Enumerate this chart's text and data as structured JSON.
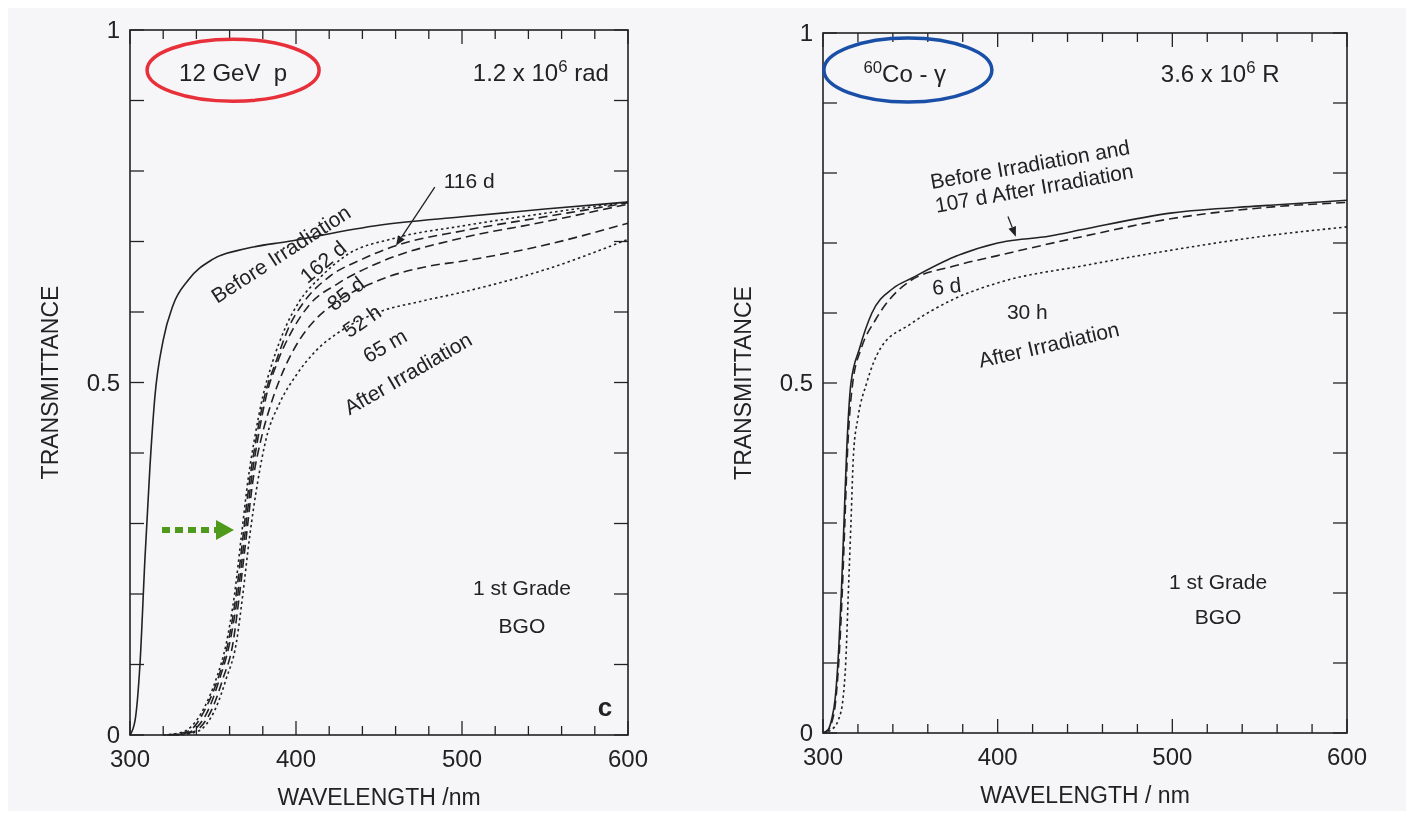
{
  "chart_data": [
    {
      "type": "line",
      "xlabel": "WAVELENGTH /nm",
      "ylabel": "TRANSMITTANCE",
      "xlim": [
        300,
        600
      ],
      "ylim": [
        0,
        1
      ],
      "xticks": [
        300,
        {
          "value": 320,
          "label": null
        },
        {
          "value": 340,
          "label": null
        },
        {
          "value": 360,
          "label": null
        },
        {
          "value": 380,
          "label": null
        },
        400,
        {
          "value": 420,
          "label": null
        },
        {
          "value": 440,
          "label": null
        },
        {
          "value": 460,
          "label": null
        },
        {
          "value": 480,
          "label": null
        },
        500,
        {
          "value": 520,
          "label": null
        },
        {
          "value": 540,
          "label": null
        },
        {
          "value": 560,
          "label": null
        },
        {
          "value": 580,
          "label": null
        },
        600
      ],
      "yticks": [
        0,
        {
          "value": 0.1,
          "label": null
        },
        {
          "value": 0.2,
          "label": null
        },
        {
          "value": 0.3,
          "label": null
        },
        {
          "value": 0.4,
          "label": null
        },
        0.5,
        {
          "value": 0.6,
          "label": null
        },
        {
          "value": 0.7,
          "label": null
        },
        {
          "value": 0.8,
          "label": null
        },
        {
          "value": 0.9,
          "label": null
        },
        1
      ],
      "annotations": [
        "12 GeV  p",
        "1.2 x 10$^{6}$ rad",
        "After Irradiation",
        "1 st Grade",
        "BGO",
        "c"
      ],
      "series": [
        {
          "name": "Before Irradiation",
          "color": "#222222",
          "line_style": "solid",
          "x": [
            300,
            303,
            306,
            309,
            312,
            315,
            320,
            326,
            335,
            350,
            370,
            395,
            450,
            500,
            550,
            600
          ],
          "values": [
            0,
            0.02,
            0.1,
            0.25,
            0.38,
            0.48,
            0.56,
            0.61,
            0.645,
            0.675,
            0.69,
            0.7,
            0.723,
            0.735,
            0.746,
            0.756
          ]
        },
        {
          "name": "162 d",
          "color": "#222222",
          "line_style": "dotted",
          "x": [
            320,
            330,
            336,
            345,
            352,
            358,
            363,
            367,
            371,
            375,
            380,
            386,
            394,
            402,
            415,
            430,
            460,
            500,
            550,
            600
          ],
          "values": [
            0,
            0.003,
            0.01,
            0.04,
            0.08,
            0.13,
            0.2,
            0.28,
            0.36,
            0.42,
            0.48,
            0.53,
            0.58,
            0.615,
            0.65,
            0.68,
            0.705,
            0.722,
            0.74,
            0.756
          ]
        },
        {
          "name": "116 d",
          "color": "#222222",
          "line_style": "dashed",
          "x": [
            322,
            332,
            338,
            346,
            353,
            359,
            364,
            368,
            372,
            376,
            381,
            388,
            396,
            405,
            420,
            440,
            460,
            500,
            550,
            600
          ],
          "values": [
            0,
            0.003,
            0.01,
            0.04,
            0.08,
            0.13,
            0.2,
            0.28,
            0.36,
            0.42,
            0.48,
            0.53,
            0.58,
            0.615,
            0.65,
            0.675,
            0.694,
            0.715,
            0.735,
            0.755
          ]
        },
        {
          "name": "85 d",
          "color": "#222222",
          "line_style": "dashed",
          "x": [
            324,
            334,
            340,
            348,
            354,
            360,
            365,
            369,
            373,
            377,
            382,
            389,
            398,
            408,
            425,
            450,
            500,
            550,
            600
          ],
          "values": [
            0,
            0.003,
            0.01,
            0.04,
            0.08,
            0.13,
            0.2,
            0.28,
            0.36,
            0.42,
            0.48,
            0.53,
            0.575,
            0.61,
            0.64,
            0.67,
            0.705,
            0.728,
            0.753
          ]
        },
        {
          "name": "52 h",
          "color": "#222222",
          "line_style": "dashed",
          "x": [
            326,
            336,
            342,
            350,
            356,
            362,
            366,
            370,
            374,
            379,
            385,
            393,
            402,
            412,
            425,
            450,
            480,
            500,
            550,
            600
          ],
          "values": [
            0,
            0.003,
            0.01,
            0.04,
            0.08,
            0.13,
            0.2,
            0.28,
            0.36,
            0.42,
            0.47,
            0.52,
            0.56,
            0.59,
            0.615,
            0.645,
            0.665,
            0.672,
            0.695,
            0.726
          ]
        },
        {
          "name": "65 m",
          "color": "#222222",
          "line_style": "dotted",
          "x": [
            328,
            338,
            344,
            352,
            358,
            364,
            368,
            372,
            377,
            382,
            390,
            400,
            412,
            425,
            450,
            475,
            500,
            550,
            600
          ],
          "values": [
            0,
            0.003,
            0.01,
            0.04,
            0.08,
            0.13,
            0.2,
            0.28,
            0.36,
            0.42,
            0.47,
            0.51,
            0.545,
            0.57,
            0.6,
            0.615,
            0.628,
            0.66,
            0.703
          ]
        }
      ]
    },
    {
      "type": "line",
      "xlabel": "WAVELENGTH / nm",
      "ylabel": "TRANSMITTANCE",
      "xlim": [
        300,
        600
      ],
      "ylim": [
        0,
        1
      ],
      "xticks": [
        300,
        {
          "value": 320,
          "label": null
        },
        {
          "value": 340,
          "label": null
        },
        {
          "value": 360,
          "label": null
        },
        {
          "value": 380,
          "label": null
        },
        400,
        {
          "value": 420,
          "label": null
        },
        {
          "value": 440,
          "label": null
        },
        {
          "value": 460,
          "label": null
        },
        {
          "value": 480,
          "label": null
        },
        500,
        {
          "value": 520,
          "label": null
        },
        {
          "value": 540,
          "label": null
        },
        {
          "value": 560,
          "label": null
        },
        {
          "value": 580,
          "label": null
        },
        600
      ],
      "yticks": [
        0,
        {
          "value": 0.1,
          "label": null
        },
        {
          "value": 0.2,
          "label": null
        },
        {
          "value": 0.3,
          "label": null
        },
        {
          "value": 0.4,
          "label": null
        },
        0.5,
        {
          "value": 0.6,
          "label": null
        },
        {
          "value": 0.7,
          "label": null
        },
        {
          "value": 0.8,
          "label": null
        },
        {
          "value": 0.9,
          "label": null
        },
        1
      ],
      "annotations": [
        "$^{60}$Co - γ",
        "3.6 x 10$^{6}$ R",
        "After Irradiation",
        "1 st Grade",
        "BGO"
      ],
      "series": [
        {
          "name": "Before Irradiation and 107 d After Irradiation",
          "color": "#222222",
          "line_style": "solid",
          "x": [
            300,
            303,
            305,
            307,
            309,
            310.5,
            312,
            313.5,
            316,
            321,
            328,
            340,
            351,
            375,
            400,
            430,
            450,
            500,
            550,
            600
          ],
          "values": [
            0,
            0.005,
            0.02,
            0.05,
            0.12,
            0.2,
            0.3,
            0.4,
            0.5,
            0.55,
            0.6,
            0.635,
            0.65,
            0.68,
            0.7,
            0.71,
            0.72,
            0.743,
            0.753,
            0.761
          ]
        },
        {
          "name": "6 d",
          "color": "#222222",
          "line_style": "dashed",
          "x": [
            300,
            303,
            305,
            307,
            309,
            311,
            312.5,
            314,
            317,
            322,
            330,
            350,
            375,
            400,
            450,
            500,
            550,
            600
          ],
          "values": [
            0,
            0.004,
            0.015,
            0.04,
            0.1,
            0.2,
            0.3,
            0.4,
            0.5,
            0.55,
            0.59,
            0.646,
            0.667,
            0.682,
            0.71,
            0.735,
            0.75,
            0.758
          ]
        },
        {
          "name": "30 h",
          "color": "#222222",
          "line_style": "dotted",
          "x": [
            300,
            305,
            309,
            311.5,
            313,
            314.5,
            316,
            317.5,
            320,
            325,
            333,
            350,
            375,
            400,
            450,
            500,
            550,
            600
          ],
          "values": [
            0,
            0.005,
            0.02,
            0.05,
            0.1,
            0.2,
            0.3,
            0.4,
            0.45,
            0.5,
            0.55,
            0.584,
            0.62,
            0.643,
            0.668,
            0.69,
            0.709,
            0.723
          ]
        }
      ]
    }
  ]
}
